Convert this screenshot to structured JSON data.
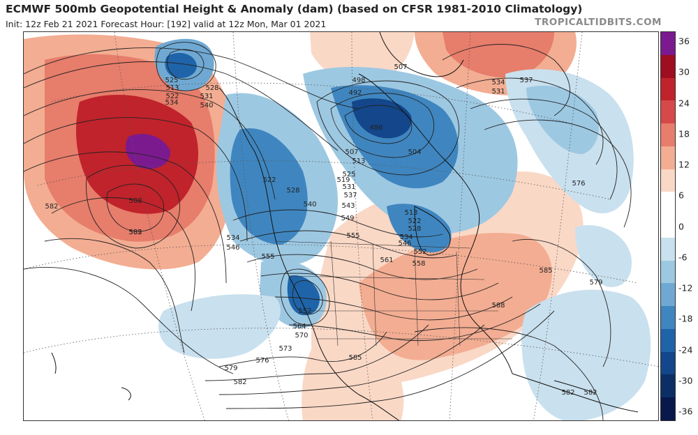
{
  "header": {
    "title": "ECMWF 500mb Geopotential Height & Anomaly (dam) (based on CFSR 1981-2010 Climatology)",
    "subtitle": "Init: 12z Feb 21 2021   Forecast Hour: [192]   valid at 12z Mon, Mar 01 2021",
    "credit": "TROPICALTIDBITS.COM"
  },
  "colorbar": {
    "labels": [
      "36",
      "30",
      "24",
      "18",
      "12",
      "6",
      "0",
      "-6",
      "-12",
      "-18",
      "-24",
      "-30",
      "-36"
    ],
    "colors": [
      "#7b1a8f",
      "#9e0d20",
      "#c0232b",
      "#d6494a",
      "#e77d6b",
      "#f3ad92",
      "#fad8c6",
      "#ffffff",
      "#ffffff",
      "#c9e0ee",
      "#9dc8e2",
      "#6fa9d3",
      "#3f86c0",
      "#1f64a8",
      "#13468a",
      "#0b2e65",
      "#08184a"
    ]
  },
  "map": {
    "contour_labels": [
      "513",
      "522",
      "525",
      "528",
      "531",
      "534",
      "540",
      "507",
      "498",
      "492",
      "486",
      "504",
      "507",
      "513",
      "519",
      "522",
      "525",
      "528",
      "531",
      "537",
      "540",
      "543",
      "549",
      "555",
      "546",
      "534",
      "555",
      "552",
      "561",
      "564",
      "570",
      "573",
      "576",
      "579",
      "582",
      "513",
      "522",
      "528",
      "534",
      "546",
      "552",
      "558",
      "585",
      "588",
      "585",
      "582",
      "588",
      "585",
      "576",
      "579",
      "582",
      "534",
      "531",
      "537",
      "582",
      "582"
    ]
  }
}
